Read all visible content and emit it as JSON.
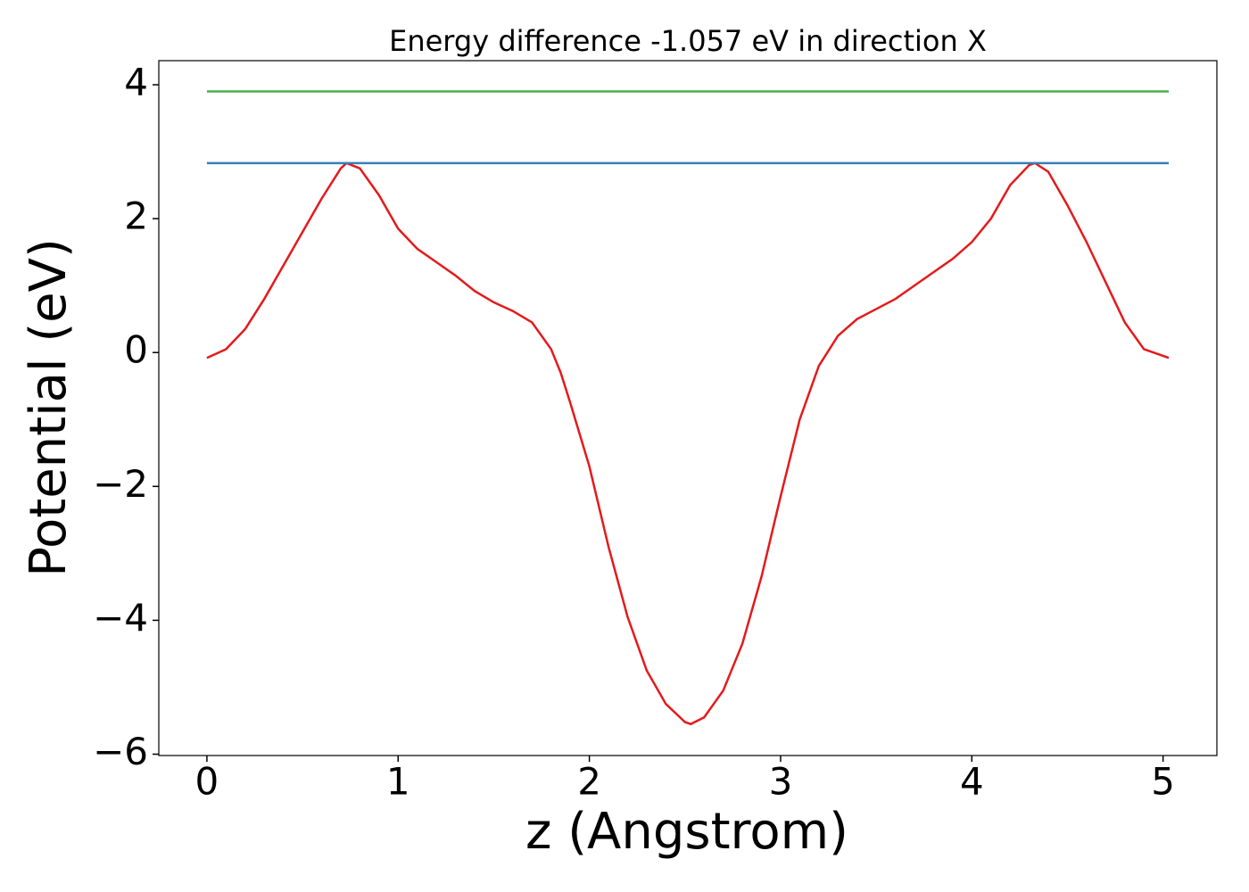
{
  "chart_data": {
    "type": "line",
    "title": "Energy difference -1.057 eV in direction X",
    "xlabel": "z (Angstrom)",
    "ylabel": "Potential (eV)",
    "xlim": [
      -0.2515,
      5.2815
    ],
    "ylim": [
      -6.02,
      4.36
    ],
    "xticks": [
      0,
      1,
      2,
      3,
      4,
      5
    ],
    "yticks": [
      {
        "value": -6,
        "label": "−6"
      },
      {
        "value": -4,
        "label": "−4"
      },
      {
        "value": -2,
        "label": "−2"
      },
      0,
      2,
      4
    ],
    "grid": false,
    "series": [
      {
        "color": "#e41a1c",
        "x": [
          0,
          0.1,
          0.2,
          0.3,
          0.4,
          0.5,
          0.6,
          0.7,
          0.73,
          0.8,
          0.9,
          1.0,
          1.1,
          1.2,
          1.3,
          1.4,
          1.5,
          1.6,
          1.7,
          1.8,
          1.85,
          1.9,
          2.0,
          2.1,
          2.2,
          2.3,
          2.4,
          2.5,
          2.53,
          2.6,
          2.7,
          2.8,
          2.9,
          3.0,
          3.1,
          3.2,
          3.3,
          3.4,
          3.5,
          3.6,
          3.7,
          3.8,
          3.9,
          4.0,
          4.1,
          4.2,
          4.3,
          4.33,
          4.4,
          4.5,
          4.6,
          4.7,
          4.8,
          4.9,
          5.0,
          5.03
        ],
        "values": [
          -0.08,
          0.05,
          0.35,
          0.8,
          1.3,
          1.8,
          2.3,
          2.75,
          2.83,
          2.75,
          2.35,
          1.85,
          1.55,
          1.35,
          1.15,
          0.92,
          0.75,
          0.62,
          0.45,
          0.05,
          -0.3,
          -0.75,
          -1.7,
          -2.9,
          -3.95,
          -4.75,
          -5.25,
          -5.52,
          -5.55,
          -5.45,
          -5.05,
          -4.35,
          -3.35,
          -2.15,
          -1.0,
          -0.2,
          0.25,
          0.5,
          0.65,
          0.8,
          1.0,
          1.2,
          1.4,
          1.65,
          2.0,
          2.5,
          2.8,
          2.83,
          2.7,
          2.2,
          1.65,
          1.05,
          0.45,
          0.05,
          -0.05,
          -0.08
        ]
      },
      {
        "color": "#377eb8",
        "x": [
          0,
          5.03
        ],
        "values": [
          2.83,
          2.83
        ]
      },
      {
        "color": "#4daf4a",
        "x": [
          0,
          5.03
        ],
        "values": [
          3.9,
          3.9
        ]
      }
    ]
  }
}
